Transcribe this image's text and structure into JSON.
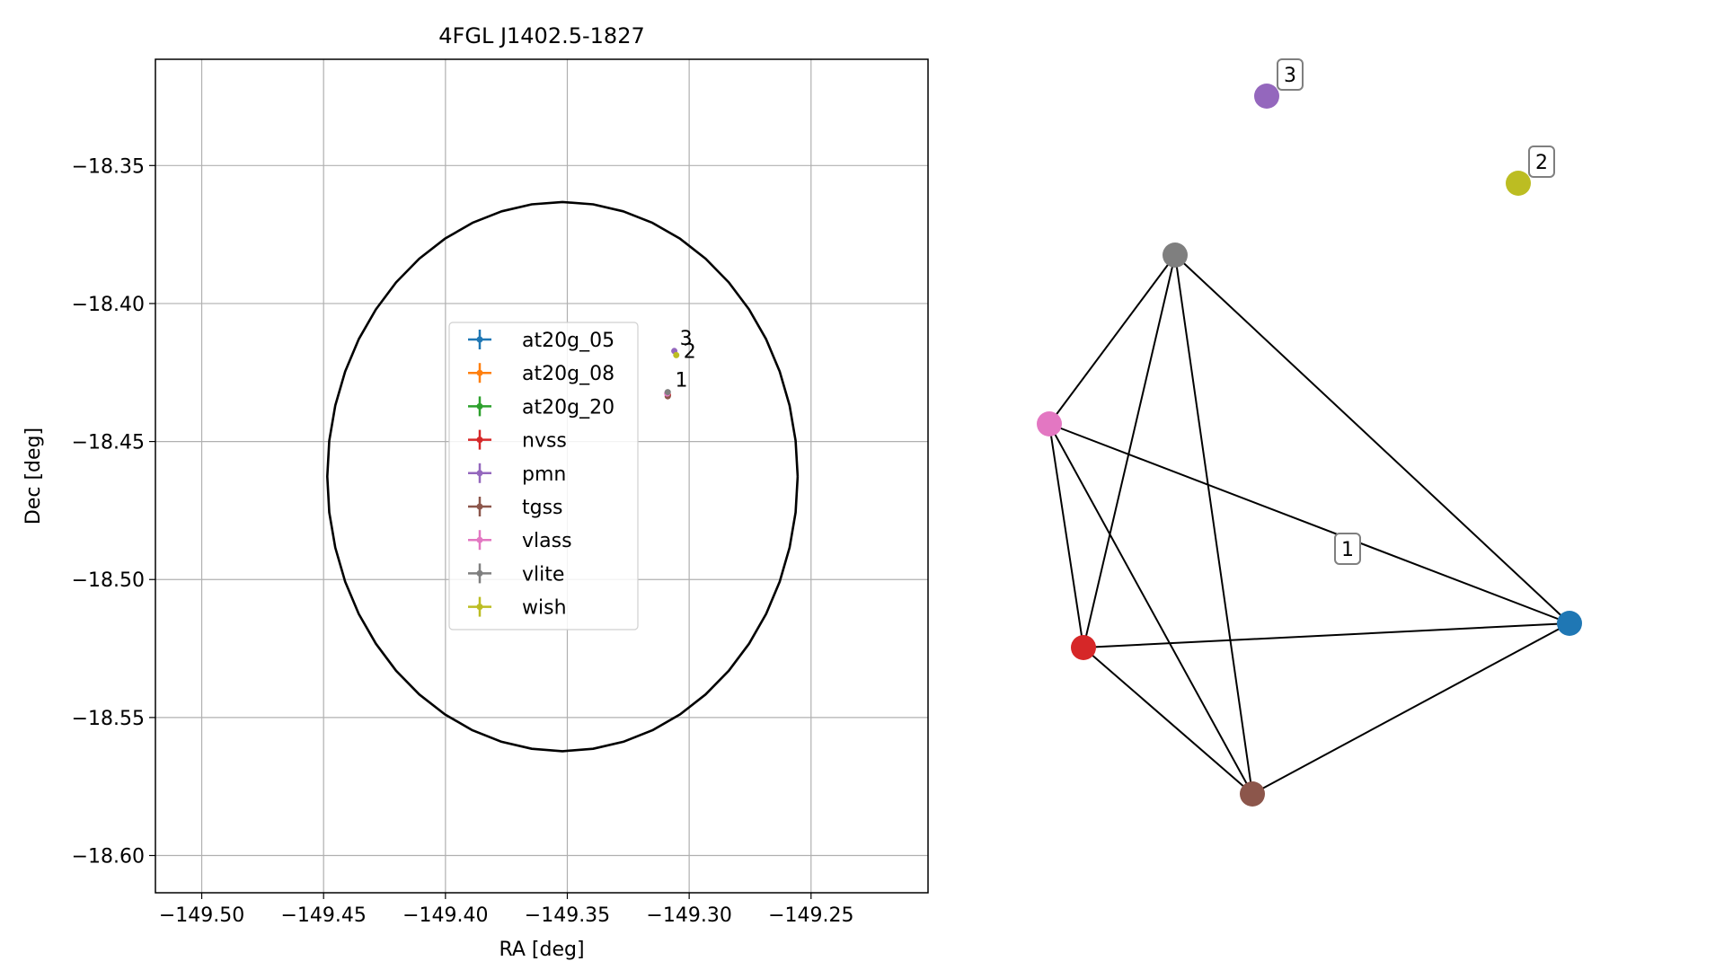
{
  "chart_data": [
    {
      "type": "scatter",
      "title": "4FGL J1402.5-1827",
      "xlabel": "RA [deg]",
      "ylabel": "Dec [deg]",
      "xlim": [
        -149.519,
        -149.202
      ],
      "ylim": [
        -18.6135,
        -18.3115
      ],
      "xticks": [
        -149.5,
        -149.45,
        -149.4,
        -149.35,
        -149.3,
        -149.25
      ],
      "xtick_labels": [
        "−149.50",
        "−149.45",
        "−149.40",
        "−149.35",
        "−149.30",
        "−149.25"
      ],
      "yticks": [
        -18.35,
        -18.4,
        -18.45,
        -18.5,
        -18.55,
        -18.6
      ],
      "ytick_labels": [
        "−18.35",
        "−18.40",
        "−18.45",
        "−18.50",
        "−18.55",
        "−18.60"
      ],
      "grid": true,
      "legend_position": "center",
      "ellipse": {
        "center": [
          -149.352,
          -18.4627
        ],
        "semi_axis_ra": 0.0965,
        "semi_axis_dec": 0.0995,
        "color": "#000000"
      },
      "series": [
        {
          "name": "at20g_05",
          "color": "#1f77b4",
          "points": []
        },
        {
          "name": "at20g_08",
          "color": "#ff7f0e",
          "points": []
        },
        {
          "name": "at20g_20",
          "color": "#2ca02c",
          "points": []
        },
        {
          "name": "nvss",
          "color": "#d62728",
          "points": [
            [
              -149.3087,
              -18.4332
            ]
          ]
        },
        {
          "name": "pmn",
          "color": "#9467bd",
          "points": [
            [
              -149.3061,
              -18.4172
            ]
          ]
        },
        {
          "name": "tgss",
          "color": "#8c564b",
          "points": [
            [
              -149.3088,
              -18.4336
            ]
          ]
        },
        {
          "name": "vlass",
          "color": "#e377c2",
          "points": [
            [
              -149.309,
              -18.4326
            ]
          ]
        },
        {
          "name": "vlite",
          "color": "#7f7f7f",
          "points": [
            [
              -149.3088,
              -18.4321
            ]
          ]
        },
        {
          "name": "wish",
          "color": "#bcbd22",
          "points": [
            [
              -149.3053,
              -18.4187
            ]
          ]
        }
      ],
      "cluster_labels": [
        {
          "text": "3",
          "at": [
            -149.3061,
            -18.4172
          ]
        },
        {
          "text": "2",
          "at": [
            -149.3053,
            -18.4187
          ]
        },
        {
          "text": "1",
          "at": [
            -149.3087,
            -18.433
          ]
        }
      ]
    },
    {
      "type": "network",
      "nodes": [
        {
          "name": "pmn",
          "color": "#9467bd"
        },
        {
          "name": "wish",
          "color": "#bcbd22"
        },
        {
          "name": "vlite",
          "color": "#7f7f7f"
        },
        {
          "name": "vlass",
          "color": "#e377c2"
        },
        {
          "name": "at20g",
          "color": "#1f77b4"
        },
        {
          "name": "nvss",
          "color": "#d62728"
        },
        {
          "name": "tgss",
          "color": "#8c564b"
        }
      ],
      "edges": [
        [
          "vlite",
          "vlass"
        ],
        [
          "vlite",
          "nvss"
        ],
        [
          "vlite",
          "tgss"
        ],
        [
          "vlite",
          "at20g"
        ],
        [
          "vlass",
          "nvss"
        ],
        [
          "vlass",
          "tgss"
        ],
        [
          "vlass",
          "at20g"
        ],
        [
          "nvss",
          "tgss"
        ],
        [
          "nvss",
          "at20g"
        ],
        [
          "tgss",
          "at20g"
        ]
      ],
      "labels": [
        {
          "text": "3",
          "node": "pmn"
        },
        {
          "text": "2",
          "node": "wish"
        },
        {
          "text": "1",
          "component": "main"
        }
      ]
    }
  ]
}
